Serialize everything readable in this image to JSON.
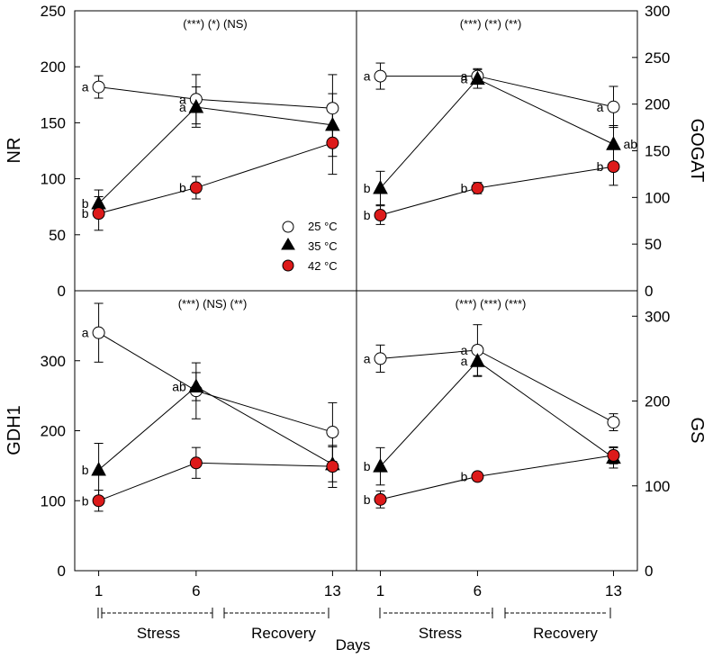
{
  "chart_data": {
    "type": "line",
    "xlabel": "Days",
    "x_ticks": [
      1,
      6,
      13
    ],
    "x_positions": [
      1,
      6,
      13
    ],
    "periods": [
      {
        "label": "Stress",
        "from": 1,
        "to": 6
      },
      {
        "label": "Recovery",
        "from": 6,
        "to": 13
      }
    ],
    "legend": [
      {
        "label": "25 °C",
        "marker": "circle",
        "fill": "#ffffff"
      },
      {
        "label": "35 °C",
        "marker": "triangle",
        "fill": "#000000"
      },
      {
        "label": "42 °C",
        "marker": "circle",
        "fill": "#dd1a1a"
      }
    ],
    "panels": [
      {
        "id": "nr",
        "ylabel": "NR",
        "ylim": [
          0,
          250
        ],
        "yticks": [
          0,
          50,
          100,
          150,
          200,
          250
        ],
        "significance": "(***) (*) (NS)",
        "series": [
          {
            "name": "25 °C",
            "values": [
              182,
              171,
              163
            ],
            "errors": [
              10,
              22,
              30
            ],
            "letters": [
              "a",
              "a",
              ""
            ]
          },
          {
            "name": "35 °C",
            "values": [
              78,
              164,
              148
            ],
            "errors": [
              12,
              18,
              28
            ],
            "letters": [
              "b",
              "a",
              ""
            ]
          },
          {
            "name": "42 °C",
            "values": [
              69,
              92,
              132
            ],
            "errors": [
              15,
              10,
              28
            ],
            "letters": [
              "b",
              "b",
              ""
            ]
          }
        ]
      },
      {
        "id": "gogat",
        "ylabel": "GOGAT",
        "ylim": [
          0,
          300
        ],
        "yticks": [
          0,
          50,
          100,
          150,
          200,
          250,
          300
        ],
        "significance": "(***) (**) (**)",
        "series": [
          {
            "name": "25 °C",
            "values": [
              230,
              230,
              197
            ],
            "errors": [
              14,
              8,
              22
            ],
            "letters": [
              "a",
              "a",
              "a"
            ]
          },
          {
            "name": "35 °C",
            "values": [
              110,
              227,
              157
            ],
            "errors": [
              18,
              10,
              20
            ],
            "letters": [
              "b",
              "a",
              "ab"
            ]
          },
          {
            "name": "42 °C",
            "values": [
              81,
              110,
              133
            ],
            "errors": [
              10,
              6,
              20
            ],
            "letters": [
              "b",
              "b",
              "b"
            ]
          }
        ]
      },
      {
        "id": "gdh1",
        "ylabel": "GDH1",
        "ylim": [
          0,
          400
        ],
        "yticks": [
          0,
          100,
          200,
          300
        ],
        "significance": "(***) (NS) (**)",
        "series": [
          {
            "name": "25 °C",
            "values": [
              340,
              257,
              198
            ],
            "errors": [
              42,
              40,
              42
            ],
            "letters": [
              "a",
              "",
              ""
            ]
          },
          {
            "name": "35 °C",
            "values": [
              144,
              263,
              152
            ],
            "errors": [
              38,
              20,
              25
            ],
            "letters": [
              "b",
              "ab",
              ""
            ]
          },
          {
            "name": "42 °C",
            "values": [
              100,
              154,
              149
            ],
            "errors": [
              15,
              22,
              30
            ],
            "letters": [
              "b",
              "",
              ""
            ]
          }
        ]
      },
      {
        "id": "gs",
        "ylabel": "GS",
        "ylim": [
          0,
          330
        ],
        "yticks": [
          0,
          100,
          200,
          300
        ],
        "significance": "(***) (***) (***)",
        "series": [
          {
            "name": "25 °C",
            "values": [
              250,
              260,
              175
            ],
            "errors": [
              16,
              30,
              10
            ],
            "letters": [
              "a",
              "a",
              ""
            ]
          },
          {
            "name": "35 °C",
            "values": [
              123,
              247,
              133
            ],
            "errors": [
              22,
              18,
              12
            ],
            "letters": [
              "b",
              "a",
              ""
            ]
          },
          {
            "name": "42 °C",
            "values": [
              84,
              111,
              136
            ],
            "errors": [
              10,
              5,
              10
            ],
            "letters": [
              "b",
              "b",
              ""
            ]
          }
        ]
      }
    ]
  }
}
